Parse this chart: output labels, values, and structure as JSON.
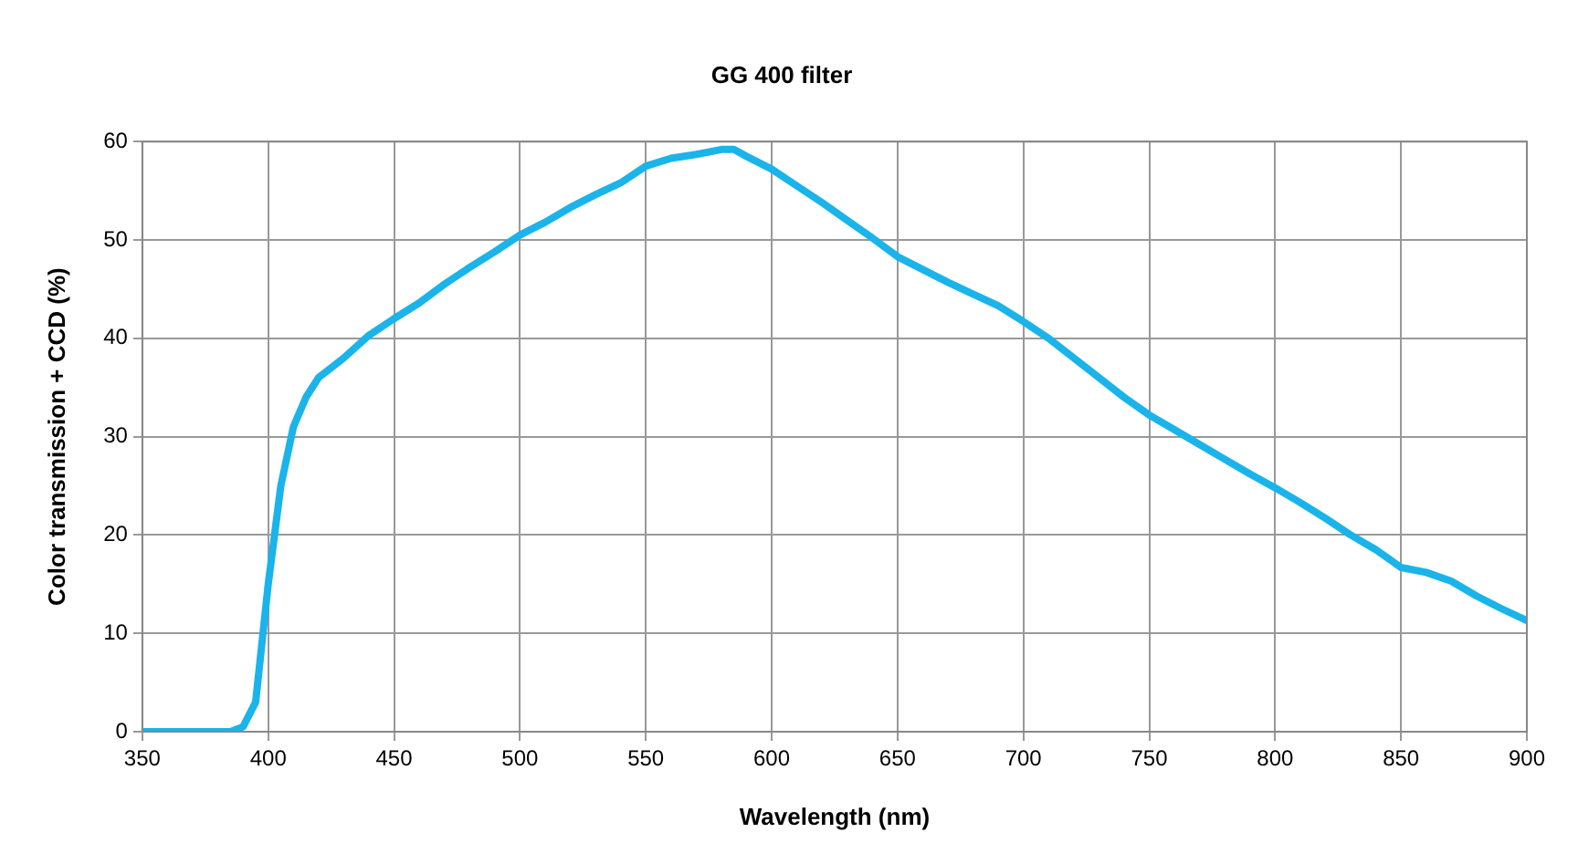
{
  "chart_data": {
    "type": "line",
    "title": "GG 400 filter",
    "xlabel": "Wavelength (nm)",
    "ylabel": "Color transmission + CCD (%)",
    "x": [
      350,
      385,
      390,
      395,
      400,
      405,
      410,
      415,
      420,
      430,
      440,
      450,
      460,
      470,
      480,
      490,
      500,
      510,
      520,
      530,
      540,
      550,
      560,
      570,
      580,
      585,
      590,
      600,
      610,
      620,
      630,
      640,
      650,
      660,
      670,
      680,
      690,
      700,
      710,
      720,
      730,
      740,
      750,
      760,
      770,
      780,
      790,
      800,
      810,
      820,
      830,
      840,
      850,
      860,
      870,
      880,
      890,
      900
    ],
    "series": [
      {
        "color": "#1ab4ea",
        "values": [
          0,
          0,
          0.5,
          3,
          15,
          25,
          31,
          34,
          36,
          38,
          40.3,
          42,
          43.6,
          45.5,
          47.2,
          48.8,
          50.5,
          51.8,
          53.3,
          54.6,
          55.8,
          57.5,
          58.3,
          58.7,
          59.2,
          59.2,
          58.5,
          57.2,
          55.5,
          53.8,
          52,
          50.2,
          48.3,
          47,
          45.7,
          44.5,
          43.3,
          41.7,
          40,
          38,
          36,
          34,
          32.2,
          30.7,
          29.2,
          27.7,
          26.2,
          24.8,
          23.3,
          21.7,
          20,
          18.5,
          16.7,
          16.2,
          15.3,
          13.8,
          12.5,
          11.3
        ]
      }
    ],
    "xlim": [
      350,
      900
    ],
    "xticks": [
      350,
      400,
      450,
      500,
      550,
      600,
      650,
      700,
      750,
      800,
      850,
      900
    ],
    "ylim": [
      0,
      60
    ],
    "yticks": [
      0,
      10,
      20,
      30,
      40,
      50,
      60
    ],
    "grid": true,
    "legend": false,
    "marker": "none",
    "line_style": "solid"
  }
}
